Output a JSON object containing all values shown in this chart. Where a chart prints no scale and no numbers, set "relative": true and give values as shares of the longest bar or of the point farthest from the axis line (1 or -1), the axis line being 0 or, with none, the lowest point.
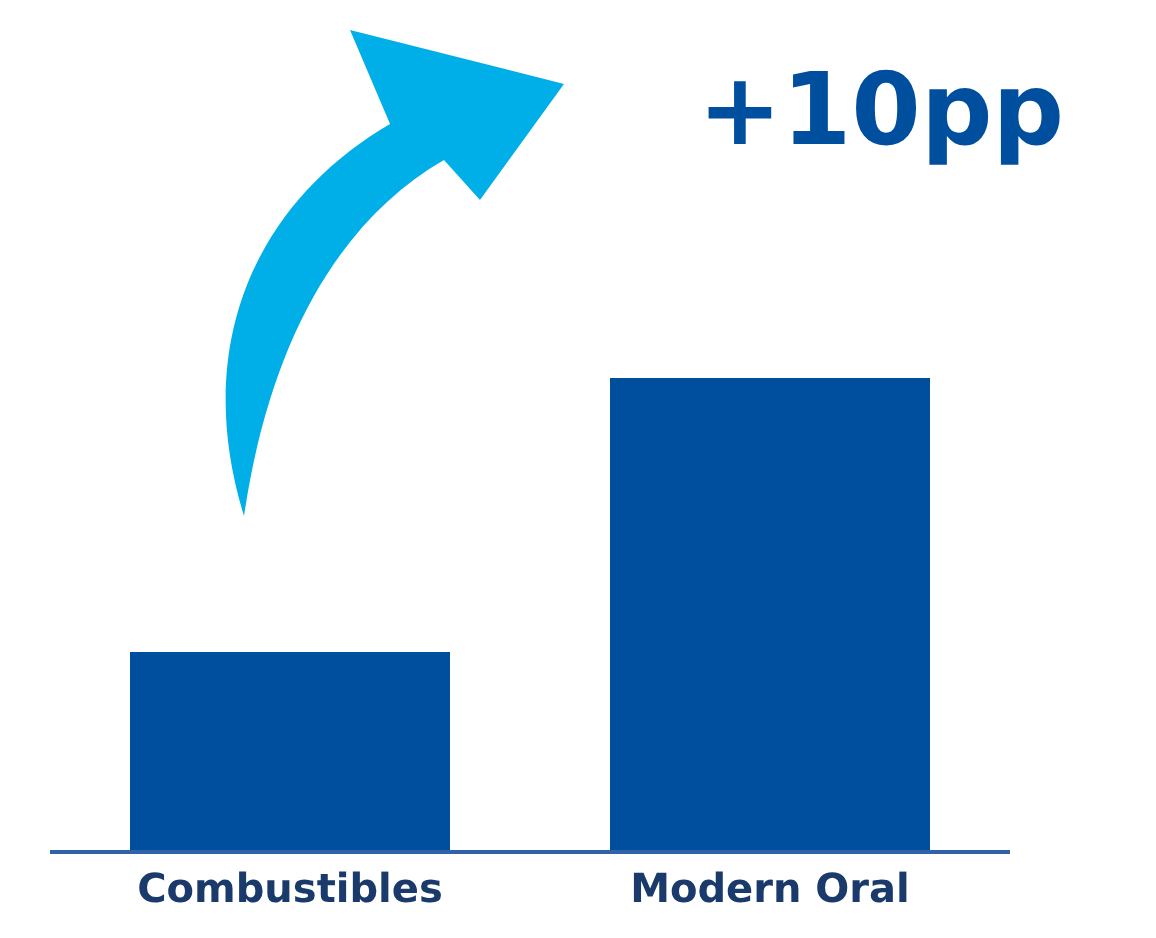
{
  "chart_data": {
    "type": "bar",
    "relative": true,
    "categories": [
      "Combustibles",
      "Modern Oral"
    ],
    "values": [
      0.42,
      1
    ],
    "color": "#004f9f",
    "annotations": [
      "+10pp"
    ]
  }
}
